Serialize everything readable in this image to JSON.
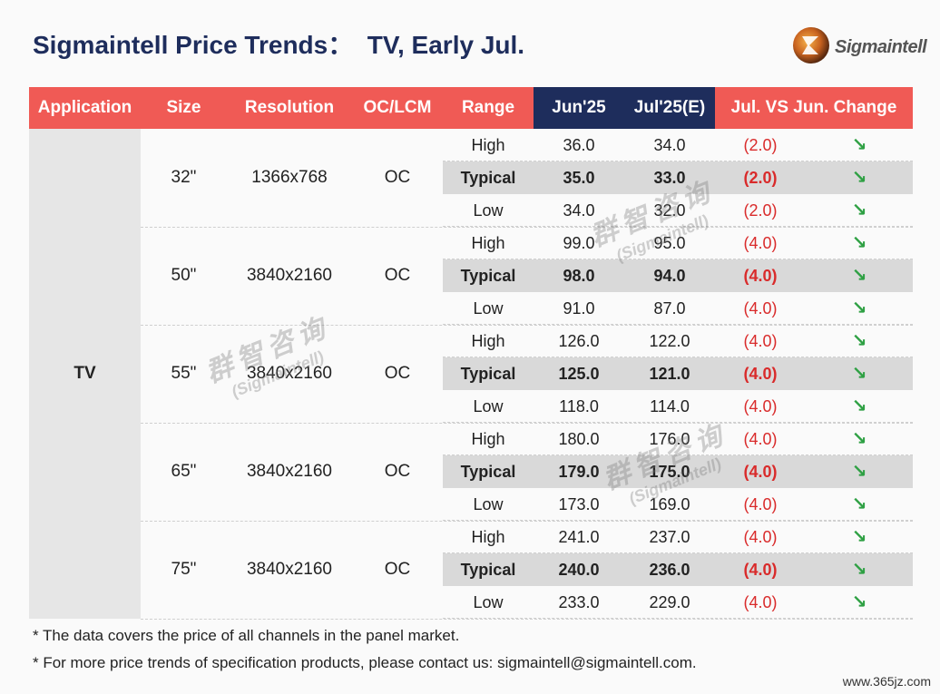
{
  "title": "Sigmaintell Price Trends：  TV, Early Jul.",
  "logo": {
    "text": "Sigmaintell",
    "icon": "sigmaintell-logo-icon"
  },
  "headers": [
    "Application",
    "Size",
    "Resolution",
    "OC/LCM",
    "Range",
    "Jun'25",
    "Jul'25(E)",
    "Jul. VS Jun. Change"
  ],
  "application": "TV",
  "groups": [
    {
      "size": "32\"",
      "resolution": "1366x768",
      "oc": "OC",
      "rows": [
        {
          "range": "High",
          "jun": "36.0",
          "jul": "34.0",
          "change": "(2.0)"
        },
        {
          "range": "Typical",
          "jun": "35.0",
          "jul": "33.0",
          "change": "(2.0)"
        },
        {
          "range": "Low",
          "jun": "34.0",
          "jul": "32.0",
          "change": "(2.0)"
        }
      ]
    },
    {
      "size": "50\"",
      "resolution": "3840x2160",
      "oc": "OC",
      "rows": [
        {
          "range": "High",
          "jun": "99.0",
          "jul": "95.0",
          "change": "(4.0)"
        },
        {
          "range": "Typical",
          "jun": "98.0",
          "jul": "94.0",
          "change": "(4.0)"
        },
        {
          "range": "Low",
          "jun": "91.0",
          "jul": "87.0",
          "change": "(4.0)"
        }
      ]
    },
    {
      "size": "55\"",
      "resolution": "3840x2160",
      "oc": "OC",
      "rows": [
        {
          "range": "High",
          "jun": "126.0",
          "jul": "122.0",
          "change": "(4.0)"
        },
        {
          "range": "Typical",
          "jun": "125.0",
          "jul": "121.0",
          "change": "(4.0)"
        },
        {
          "range": "Low",
          "jun": "118.0",
          "jul": "114.0",
          "change": "(4.0)"
        }
      ]
    },
    {
      "size": "65\"",
      "resolution": "3840x2160",
      "oc": "OC",
      "rows": [
        {
          "range": "High",
          "jun": "180.0",
          "jul": "176.0",
          "change": "(4.0)"
        },
        {
          "range": "Typical",
          "jun": "179.0",
          "jul": "175.0",
          "change": "(4.0)"
        },
        {
          "range": "Low",
          "jun": "173.0",
          "jul": "169.0",
          "change": "(4.0)"
        }
      ]
    },
    {
      "size": "75\"",
      "resolution": "3840x2160",
      "oc": "OC",
      "rows": [
        {
          "range": "High",
          "jun": "241.0",
          "jul": "237.0",
          "change": "(4.0)"
        },
        {
          "range": "Typical",
          "jun": "240.0",
          "jul": "236.0",
          "change": "(4.0)"
        },
        {
          "range": "Low",
          "jun": "233.0",
          "jul": "229.0",
          "change": "(4.0)"
        }
      ]
    }
  ],
  "trend_icon": "arrow-down-right-icon",
  "notes": [
    "* The data covers the price of all channels in the panel market.",
    "* For more price trends of specification products, please contact us: sigmaintell@sigmaintell.com."
  ],
  "watermark": {
    "cn": "群智咨询",
    "en": "(Sigmaintell)"
  },
  "site": "www.365jz.com",
  "colors": {
    "header_red": "#f05a55",
    "header_navy": "#1e2d5c",
    "change_red": "#d92b2b",
    "arrow_green": "#2ea043"
  }
}
